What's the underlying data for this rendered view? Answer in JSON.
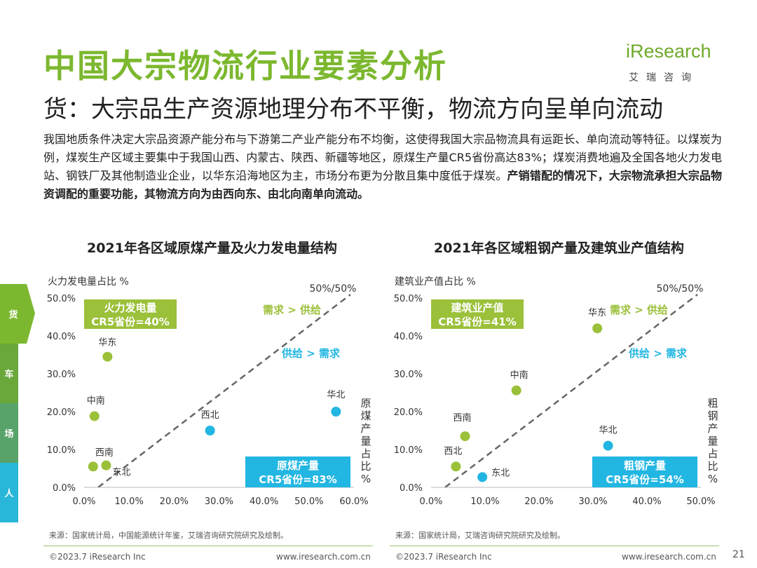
{
  "header": {
    "title": "中国大宗物流行业要素分析",
    "subtitle": "货：大宗品生产资源地理分布不平衡，物流方向呈单向流动",
    "logo_main": "iResearch",
    "logo_sub": "艾瑞咨询"
  },
  "intro": {
    "normal": "我国地质条件决定大宗品资源产能分布与下游第二产业产能分布不均衡，这使得我国大宗品物流具有运距长、单向流动等特征。以煤炭为例，煤炭生产区域主要集中于我国山西、内蒙古、陕西、新疆等地区，原煤生产量CR5省份高达83%；煤炭消费地遍及全国各地火力发电站、钢铁厂及其他制造业企业，以华东沿海地区为主，市场分布更为分散且集中度低于煤炭。",
    "bold": "产销错配的情况下，大宗物流承担大宗品物资调配的重要功能，其物流方向为由西向东、由北向南单向流动。"
  },
  "side_tabs": [
    "货",
    "车",
    "场",
    "人"
  ],
  "colors": {
    "green": "#9bc03a",
    "blue": "#22b6e2",
    "title_green": "#7cb82f",
    "dash": "#666666"
  },
  "chart_data": [
    {
      "type": "scatter",
      "title": "2021年各区域原煤产量及火力发电量结构",
      "ylabel": "火力发电量占比 %",
      "xlabel": "原煤产量占比%",
      "xlim": [
        0,
        60
      ],
      "ylim": [
        0,
        50
      ],
      "x_ticks": [
        "0.0%",
        "10.0%",
        "20.0%",
        "30.0%",
        "40.0%",
        "50.0%",
        "60.0%"
      ],
      "y_ticks": [
        "0.0%",
        "10.0%",
        "20.0%",
        "30.0%",
        "40.0%",
        "50.0%"
      ],
      "diagonal_label": "50%/50%",
      "demand_label": "需求 > 供给",
      "supply_label": "供给 > 需求",
      "top_box": [
        "火力发电量",
        "CR5省份=40%"
      ],
      "bottom_box": [
        "原煤产量",
        "CR5省份=83%"
      ],
      "points": [
        {
          "name": "华东",
          "x": 5.2,
          "y": 34.5,
          "group": "demand"
        },
        {
          "name": "中南",
          "x": 2.3,
          "y": 18.8,
          "group": "demand"
        },
        {
          "name": "西南",
          "x": 2.0,
          "y": 5.5,
          "group": "demand"
        },
        {
          "name": "东北",
          "x": 4.9,
          "y": 5.8,
          "group": "demand"
        },
        {
          "name": "西北",
          "x": 28.0,
          "y": 15.0,
          "group": "supply"
        },
        {
          "name": "华北",
          "x": 56.0,
          "y": 20.0,
          "group": "supply"
        }
      ],
      "source": "来源：国家统计局，中国能源统计年鉴，艾瑞咨询研究院研究及绘制。"
    },
    {
      "type": "scatter",
      "title": "2021年各区域粗钢产量及建筑业产值结构",
      "ylabel": "建筑业产值占比 %",
      "xlabel": "粗钢产量占比%",
      "xlim": [
        0,
        50
      ],
      "ylim": [
        0,
        50
      ],
      "x_ticks": [
        "0.0%",
        "10.0%",
        "20.0%",
        "30.0%",
        "40.0%",
        "50.0%"
      ],
      "y_ticks": [
        "0.0%",
        "10.0%",
        "20.0%",
        "30.0%",
        "40.0%",
        "50.0%"
      ],
      "diagonal_label": "50%/50%",
      "demand_label": "需求 > 供给",
      "supply_label": "供给 > 需求",
      "top_box": [
        "建筑业产值",
        "CR5省份=41%"
      ],
      "bottom_box": [
        "粗钢产量",
        "CR5省份=54%"
      ],
      "points": [
        {
          "name": "华东",
          "x": 30.8,
          "y": 42.0,
          "group": "demand"
        },
        {
          "name": "中南",
          "x": 15.8,
          "y": 25.6,
          "group": "demand"
        },
        {
          "name": "西南",
          "x": 6.3,
          "y": 13.5,
          "group": "demand"
        },
        {
          "name": "西北",
          "x": 4.6,
          "y": 5.5,
          "group": "demand"
        },
        {
          "name": "东北",
          "x": 9.5,
          "y": 2.7,
          "group": "supply"
        },
        {
          "name": "华北",
          "x": 32.8,
          "y": 11.0,
          "group": "supply"
        }
      ],
      "source": "来源：国家统计局，艾瑞咨询研究院研究及绘制。"
    }
  ],
  "footer": {
    "copyright": "©2023.7 iResearch Inc",
    "url": "www.iresearch.com.cn",
    "page": "21"
  }
}
